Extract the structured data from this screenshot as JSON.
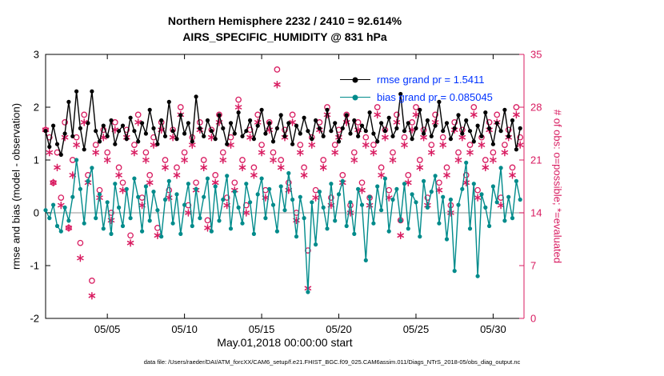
{
  "title": {
    "line1": "Northern Hemisphere 2232 / 2410 = 92.614%",
    "line2": "AIRS_SPECIFIC_HUMIDITY @ 831 hPa"
  },
  "footer": {
    "text": "data file: /Users/raeder/DAI/ATM_forcXX/CAM6_setup/f.e21.FHIST_BGC.f09_025.CAM6assim.011/Diags_NTrS_2018-05/obs_diag_output.nc"
  },
  "legend": {
    "text_color": "#0033ff",
    "items": [
      {
        "label": "rmse grand pr = 1.5411",
        "color": "#000000"
      },
      {
        "label": "bias grand pr = 0.085045",
        "color": "#008b8b"
      }
    ]
  },
  "colors": {
    "axis": "#000000",
    "obs": "#d81b60",
    "zero_line": "#aaaaaa",
    "rmse": "#000000",
    "bias": "#008b8b"
  },
  "chart_data": {
    "type": "line",
    "title_lines": [
      "Northern Hemisphere 2232 / 2410 = 92.614%",
      "AIRS_SPECIFIC_HUMIDITY @ 831 hPa"
    ],
    "x_axis": {
      "label": "May.01,2018 00:00:00 start",
      "start_day": 0,
      "step_days": 0.25,
      "range_days": [
        0,
        31
      ],
      "tick_days": [
        4,
        9,
        14,
        19,
        24,
        29
      ],
      "tick_labels": [
        "05/05",
        "05/10",
        "05/15",
        "05/20",
        "05/25",
        "05/30"
      ]
    },
    "y_left": {
      "label": "rmse and bias (model - observation)",
      "range": [
        -2,
        3
      ],
      "ticks": [
        -2,
        -1,
        0,
        1,
        2,
        3
      ]
    },
    "y_right": {
      "label": "# of obs: o=possible; *=evaluated",
      "range": [
        0,
        35
      ],
      "ticks": [
        0,
        7,
        14,
        21,
        28,
        35
      ]
    },
    "grid": "zero-line-only",
    "legend_position": "top-right-inside",
    "series": [
      {
        "name": "obs_possible",
        "axis": "right",
        "style": "open-circle",
        "color": "#d81b60",
        "values": [
          25,
          24,
          18,
          22,
          16,
          26,
          12,
          21,
          24,
          10,
          27,
          19,
          5,
          23,
          17,
          25,
          22,
          14,
          26,
          20,
          18,
          25,
          11,
          23,
          27,
          16,
          22,
          19,
          24,
          12,
          26,
          21,
          17,
          25,
          20,
          28,
          22,
          15,
          24,
          18,
          26,
          21,
          13,
          25,
          19,
          27,
          22,
          16,
          24,
          18,
          29,
          21,
          15,
          25,
          20,
          27,
          23,
          17,
          26,
          22,
          33,
          21,
          25,
          18,
          27,
          14,
          23,
          20,
          9,
          24,
          17,
          26,
          21,
          28,
          16,
          23,
          25,
          19,
          27,
          15,
          22,
          26,
          18,
          24,
          16,
          23,
          28,
          20,
          25,
          17,
          22,
          27,
          13,
          24,
          19,
          26,
          28,
          21,
          25,
          16,
          23,
          27,
          18,
          24,
          20,
          15,
          26,
          22,
          25,
          19,
          23,
          28,
          17,
          24,
          21,
          26,
          22,
          27,
          16,
          23,
          25,
          20,
          28,
          24
        ]
      },
      {
        "name": "obs_evaluated",
        "axis": "right",
        "style": "asterisk",
        "color": "#d81b60",
        "values": [
          25,
          22,
          18,
          20,
          15,
          24,
          12,
          19,
          23,
          8,
          26,
          18,
          3,
          22,
          16,
          24,
          21,
          13,
          25,
          19,
          17,
          24,
          10,
          22,
          26,
          15,
          21,
          18,
          23,
          11,
          25,
          20,
          16,
          24,
          19,
          27,
          21,
          14,
          23,
          17,
          25,
          20,
          12,
          24,
          18,
          26,
          21,
          15,
          23,
          17,
          28,
          20,
          14,
          24,
          19,
          26,
          22,
          16,
          25,
          21,
          31,
          20,
          24,
          17,
          26,
          13,
          22,
          19,
          4,
          23,
          16,
          25,
          20,
          27,
          15,
          22,
          24,
          18,
          26,
          14,
          21,
          25,
          17,
          23,
          15,
          22,
          27,
          19,
          24,
          16,
          21,
          26,
          11,
          23,
          18,
          25,
          27,
          20,
          24,
          15,
          22,
          26,
          17,
          23,
          19,
          14,
          25,
          21,
          24,
          18,
          22,
          27,
          16,
          23,
          20,
          25,
          21,
          26,
          15,
          22,
          24,
          19,
          27,
          23
        ]
      },
      {
        "name": "bias",
        "axis": "left",
        "style": "line-dot",
        "color": "#008b8b",
        "values": [
          0.05,
          -0.1,
          0.15,
          -0.25,
          -0.35,
          0.1,
          -0.15,
          0.3,
          1.0,
          0.45,
          -0.2,
          0.6,
          0.85,
          -0.1,
          0.35,
          -0.3,
          0.2,
          -0.4,
          0.55,
          0.1,
          -0.25,
          0.45,
          -0.1,
          0.65,
          0.3,
          -0.35,
          0.5,
          -0.15,
          0.4,
          0.05,
          -0.45,
          0.25,
          0.6,
          -0.2,
          0.35,
          -0.4,
          0.15,
          0.55,
          -0.25,
          0.45,
          -0.1,
          0.3,
          0.65,
          -0.35,
          0.5,
          -0.15,
          0.25,
          0.7,
          -0.3,
          0.4,
          0.1,
          -0.2,
          0.55,
          0.2,
          -0.4,
          0.35,
          0.65,
          -0.1,
          0.45,
          0.15,
          -0.35,
          0.5,
          0.05,
          0.75,
          0.25,
          -0.45,
          0.3,
          -0.1,
          -1.5,
          0.2,
          -0.6,
          0.4,
          0.1,
          -0.3,
          0.55,
          -0.15,
          0.35,
          0.6,
          -0.25,
          0.2,
          -0.4,
          0.45,
          0.15,
          -0.9,
          0.3,
          -0.2,
          0.5,
          0.05,
          0.65,
          -0.35,
          0.25,
          0.45,
          -0.15,
          0.55,
          -0.3,
          0.35,
          0.2,
          -0.45,
          0.6,
          0.1,
          0.4,
          0.7,
          -0.2,
          0.3,
          -0.5,
          0.25,
          -1.1,
          0.15,
          0.45,
          0.95,
          -0.3,
          0.55,
          -1.2,
          0.35,
          0.1,
          -0.25,
          0.5,
          0.2,
          0.85,
          -0.15,
          0.3,
          -0.1,
          0.6,
          0.25
        ]
      },
      {
        "name": "rmse",
        "axis": "left",
        "style": "line-dot",
        "color": "#000000",
        "values": [
          1.55,
          1.25,
          1.65,
          1.3,
          1.1,
          1.5,
          2.1,
          1.45,
          2.3,
          1.6,
          1.2,
          1.7,
          2.3,
          1.55,
          1.35,
          1.65,
          1.45,
          1.75,
          1.3,
          1.55,
          1.65,
          1.4,
          1.8,
          1.55,
          1.35,
          1.7,
          1.5,
          1.95,
          1.6,
          1.3,
          1.75,
          1.45,
          2.1,
          1.55,
          1.4,
          1.85,
          1.5,
          1.7,
          1.35,
          2.2,
          1.6,
          1.45,
          1.75,
          1.55,
          1.4,
          1.85,
          1.6,
          1.3,
          1.7,
          1.5,
          1.9,
          1.45,
          1.55,
          1.75,
          1.4,
          1.65,
          1.95,
          1.5,
          1.7,
          1.35,
          1.6,
          1.85,
          1.45,
          1.7,
          1.3,
          1.65,
          1.5,
          1.8,
          1.55,
          1.4,
          1.75,
          1.6,
          1.45,
          1.95,
          1.55,
          1.7,
          1.35,
          1.6,
          1.85,
          1.5,
          1.75,
          1.45,
          1.65,
          1.55,
          1.9,
          1.5,
          1.35,
          1.7,
          1.55,
          1.8,
          1.45,
          1.6,
          2.25,
          1.55,
          1.7,
          1.4,
          1.6,
          1.95,
          1.5,
          1.75,
          1.45,
          1.65,
          2.1,
          1.55,
          1.7,
          1.4,
          1.6,
          1.85,
          1.5,
          1.75,
          1.55,
          1.35,
          1.65,
          1.45,
          1.9,
          1.6,
          1.3,
          1.7,
          1.55,
          1.95,
          1.45,
          1.75,
          1.2,
          1.6
        ]
      }
    ]
  }
}
